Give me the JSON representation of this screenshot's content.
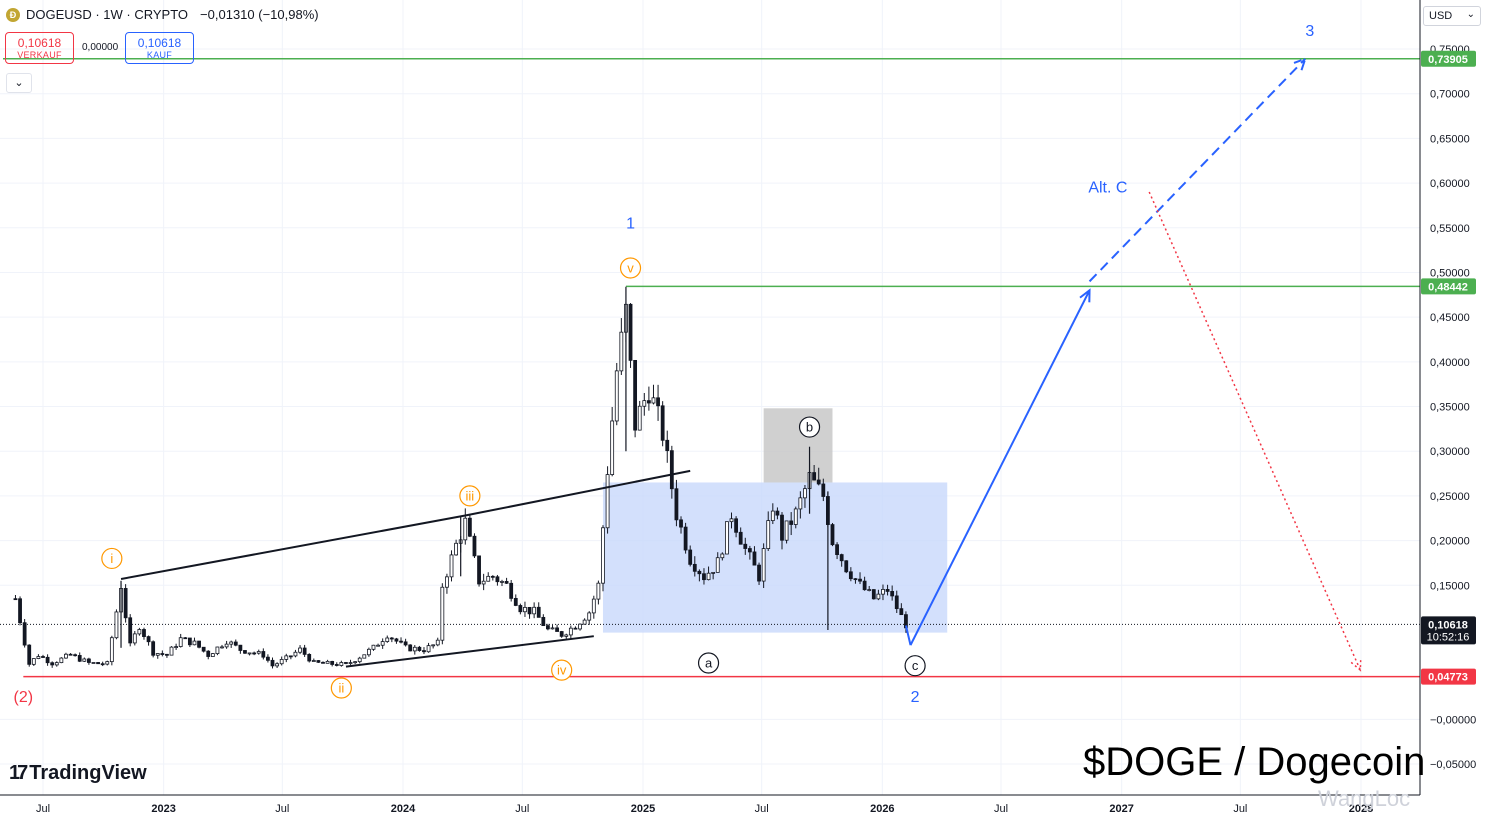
{
  "header": {
    "symbol": "DOGEUSD",
    "interval": "1W",
    "market": "CRYPTO",
    "symbol_line": "DOGEUSD · 1W · CRYPTO",
    "change": "−0,01310 (−10,98%)",
    "coin_icon": "dogecoin-coin-icon"
  },
  "quotes": {
    "sell_value": "0,10618",
    "sell_label": "VERKAUF",
    "spread": "0,00000",
    "buy_value": "0,10618",
    "buy_label": "KAUF"
  },
  "collapse_icon": "chevron-down-icon",
  "collapse_glyph": "⌄",
  "currency_select": {
    "value": "USD",
    "glyph": "⌄"
  },
  "brand": {
    "logo_mark": "17",
    "name": "TradingView"
  },
  "overlay_title": "$DOGE / Dogecoin",
  "watermark": "WangLoc",
  "colors": {
    "up": "#131722",
    "line_green": "#4caf50",
    "line_red": "#f23645",
    "blue": "#2962ff",
    "orange": "#ff9800",
    "box_blue": "#c8d8fb",
    "box_gray": "#c4c4c4"
  },
  "chart_data": {
    "type": "candlestick",
    "title": "$DOGE / Dogecoin",
    "ylim": [
      -0.06,
      0.78
    ],
    "y_ticks": [
      {
        "v": 0.75,
        "label": "0,75000"
      },
      {
        "v": 0.7,
        "label": "0,70000"
      },
      {
        "v": 0.65,
        "label": "0,65000"
      },
      {
        "v": 0.6,
        "label": "0,60000"
      },
      {
        "v": 0.55,
        "label": "0,55000"
      },
      {
        "v": 0.5,
        "label": "0,50000"
      },
      {
        "v": 0.45,
        "label": "0,45000"
      },
      {
        "v": 0.4,
        "label": "0,40000"
      },
      {
        "v": 0.35,
        "label": "0,35000"
      },
      {
        "v": 0.3,
        "label": "0,30000"
      },
      {
        "v": 0.25,
        "label": "0,25000"
      },
      {
        "v": 0.2,
        "label": "0,20000"
      },
      {
        "v": 0.15,
        "label": "0,15000"
      },
      {
        "v": 0.0,
        "label": "−0,00000"
      },
      {
        "v": -0.05,
        "label": "−0,05000"
      }
    ],
    "x_ticks": [
      {
        "t": "2022-07-01",
        "label": "Jul"
      },
      {
        "t": "2023-01-01",
        "label": "2023"
      },
      {
        "t": "2023-07-01",
        "label": "Jul"
      },
      {
        "t": "2024-01-01",
        "label": "2024"
      },
      {
        "t": "2024-07-01",
        "label": "Jul"
      },
      {
        "t": "2025-01-01",
        "label": "2025"
      },
      {
        "t": "2025-07-01",
        "label": "Jul"
      },
      {
        "t": "2026-01-01",
        "label": "2026"
      },
      {
        "t": "2026-07-01",
        "label": "Jul"
      },
      {
        "t": "2027-01-01",
        "label": "2027"
      },
      {
        "t": "2027-07-01",
        "label": "Jul"
      },
      {
        "t": "2028-01-01",
        "label": "2028"
      }
    ],
    "price_badges": [
      {
        "v": 0.73905,
        "label": "0,73905",
        "color": "#4caf50"
      },
      {
        "v": 0.48442,
        "label": "0,48442",
        "color": "#4caf50"
      },
      {
        "v": 0.10618,
        "label": "0,10618",
        "sub": "10:52:16",
        "color": "#131722"
      },
      {
        "v": 0.04773,
        "label": "0,04773",
        "color": "#f23645"
      }
    ],
    "price_path": [
      [
        "2022-05-20",
        0.135
      ],
      [
        "2022-06-10",
        0.062
      ],
      [
        "2022-06-24",
        0.072
      ],
      [
        "2022-07-15",
        0.063
      ],
      [
        "2022-08-12",
        0.072
      ],
      [
        "2022-09-09",
        0.063
      ],
      [
        "2022-10-07",
        0.062
      ],
      [
        "2022-10-28",
        0.15
      ],
      [
        "2022-11-11",
        0.082
      ],
      [
        "2022-11-25",
        0.105
      ],
      [
        "2022-12-16",
        0.075
      ],
      [
        "2023-01-06",
        0.072
      ],
      [
        "2023-01-27",
        0.09
      ],
      [
        "2023-02-17",
        0.085
      ],
      [
        "2023-03-10",
        0.072
      ],
      [
        "2023-04-07",
        0.088
      ],
      [
        "2023-04-28",
        0.078
      ],
      [
        "2023-06-02",
        0.072
      ],
      [
        "2023-06-16",
        0.06
      ],
      [
        "2023-07-07",
        0.068
      ],
      [
        "2023-07-28",
        0.078
      ],
      [
        "2023-08-18",
        0.063
      ],
      [
        "2023-09-15",
        0.062
      ],
      [
        "2023-10-06",
        0.061
      ],
      [
        "2023-10-27",
        0.07
      ],
      [
        "2023-11-17",
        0.08
      ],
      [
        "2023-12-08",
        0.095
      ],
      [
        "2024-01-05",
        0.08
      ],
      [
        "2024-02-02",
        0.078
      ],
      [
        "2024-02-23",
        0.085
      ],
      [
        "2024-03-01",
        0.15
      ],
      [
        "2024-03-22",
        0.195
      ],
      [
        "2024-04-05",
        0.22
      ],
      [
        "2024-04-26",
        0.155
      ],
      [
        "2024-05-17",
        0.16
      ],
      [
        "2024-06-07",
        0.15
      ],
      [
        "2024-06-28",
        0.125
      ],
      [
        "2024-07-19",
        0.12
      ],
      [
        "2024-08-09",
        0.1
      ],
      [
        "2024-08-30",
        0.095
      ],
      [
        "2024-09-20",
        0.105
      ],
      [
        "2024-10-11",
        0.12
      ],
      [
        "2024-10-25",
        0.15
      ],
      [
        "2024-11-08",
        0.28
      ],
      [
        "2024-11-22",
        0.39
      ],
      [
        "2024-12-06",
        0.455
      ],
      [
        "2024-12-20",
        0.33
      ],
      [
        "2025-01-10",
        0.37
      ],
      [
        "2025-01-31",
        0.32
      ],
      [
        "2025-02-21",
        0.23
      ],
      [
        "2025-03-14",
        0.18
      ],
      [
        "2025-04-04",
        0.16
      ],
      [
        "2025-04-25",
        0.175
      ],
      [
        "2025-05-16",
        0.23
      ],
      [
        "2025-06-06",
        0.19
      ],
      [
        "2025-06-27",
        0.16
      ],
      [
        "2025-07-18",
        0.24
      ],
      [
        "2025-08-01",
        0.205
      ],
      [
        "2025-08-22",
        0.23
      ],
      [
        "2025-09-12",
        0.27
      ],
      [
        "2025-10-03",
        0.25
      ],
      [
        "2025-10-17",
        0.2
      ],
      [
        "2025-11-07",
        0.17
      ],
      [
        "2025-11-28",
        0.15
      ],
      [
        "2025-12-19",
        0.135
      ],
      [
        "2026-01-09",
        0.145
      ],
      [
        "2026-01-30",
        0.115
      ],
      [
        "2026-02-06",
        0.10618
      ]
    ],
    "spikes": [
      {
        "t": "2022-10-28",
        "hi": 0.155,
        "lo": 0.08
      },
      {
        "t": "2024-03-29",
        "hi": 0.228,
        "lo": 0.16
      },
      {
        "t": "2024-12-06",
        "hi": 0.484,
        "lo": 0.3
      },
      {
        "t": "2025-09-12",
        "hi": 0.305,
        "lo": 0.23
      },
      {
        "t": "2025-10-10",
        "hi": 0.255,
        "lo": 0.1
      }
    ],
    "horizontal_lines": [
      {
        "v": 0.73905,
        "from": "2022-05-01",
        "color": "#4caf50"
      },
      {
        "v": 0.48442,
        "from": "2024-12-06",
        "color": "#4caf50"
      },
      {
        "v": 0.04773,
        "from": "2022-06-01",
        "color": "#f23645"
      }
    ],
    "trend_lines": [
      {
        "p1": [
          "2022-10-28",
          0.157
        ],
        "p2": [
          "2024-04-05",
          0.228
        ]
      },
      {
        "p1": [
          "2023-10-06",
          0.059
        ],
        "p2": [
          "2024-10-18",
          0.093
        ]
      },
      {
        "p1": [
          "2024-04-05",
          0.228
        ],
        "p2": [
          "2025-03-14",
          0.278
        ]
      }
    ],
    "boxes": [
      {
        "t1": "2024-11-01",
        "t2": "2026-04-10",
        "v1": 0.265,
        "v2": 0.097,
        "color": "#c8d8fb"
      },
      {
        "t1": "2025-07-04",
        "t2": "2025-10-17",
        "v1": 0.348,
        "v2": 0.265,
        "color": "#c4c4c4"
      }
    ],
    "projections": [
      {
        "style": "solid",
        "color": "#2962ff",
        "points": [
          [
            "2026-02-13",
            0.083
          ],
          [
            "2026-11-13",
            0.48
          ]
        ]
      },
      {
        "style": "dashed",
        "color": "#2962ff",
        "points": [
          [
            "2026-11-13",
            0.49
          ],
          [
            "2027-10-08",
            0.739
          ]
        ]
      },
      {
        "style": "dotted",
        "color": "#f23645",
        "points": [
          [
            "2027-02-12",
            0.59
          ],
          [
            "2027-12-31",
            0.055
          ]
        ]
      }
    ],
    "wave_labels": [
      {
        "text": "(2)",
        "t": "2022-06-01",
        "v": 0.025,
        "color": "#f23645",
        "circle": false
      },
      {
        "text": "i",
        "t": "2022-10-14",
        "v": 0.18,
        "color": "#ff9800",
        "circle": true
      },
      {
        "text": "ii",
        "t": "2023-09-29",
        "v": 0.035,
        "color": "#ff9800",
        "circle": true
      },
      {
        "text": "iii",
        "t": "2024-04-12",
        "v": 0.25,
        "color": "#ff9800",
        "circle": true
      },
      {
        "text": "iv",
        "t": "2024-08-30",
        "v": 0.055,
        "color": "#ff9800",
        "circle": true
      },
      {
        "text": "v",
        "t": "2024-12-13",
        "v": 0.505,
        "color": "#ff9800",
        "circle": true
      },
      {
        "text": "1",
        "t": "2024-12-13",
        "v": 0.555,
        "color": "#2962ff",
        "circle": false
      },
      {
        "text": "a",
        "t": "2025-04-11",
        "v": 0.063,
        "color": "#131722",
        "circle": true
      },
      {
        "text": "b",
        "t": "2025-09-12",
        "v": 0.327,
        "color": "#131722",
        "circle": true
      },
      {
        "text": "c",
        "t": "2026-02-20",
        "v": 0.06,
        "color": "#131722",
        "circle": true
      },
      {
        "text": "2",
        "t": "2026-02-20",
        "v": 0.025,
        "color": "#2962ff",
        "circle": false
      },
      {
        "text": "Alt. C",
        "t": "2026-12-11",
        "v": 0.595,
        "color": "#2962ff",
        "circle": false
      },
      {
        "text": "3",
        "t": "2027-10-15",
        "v": 0.77,
        "color": "#2962ff",
        "circle": false
      }
    ]
  }
}
